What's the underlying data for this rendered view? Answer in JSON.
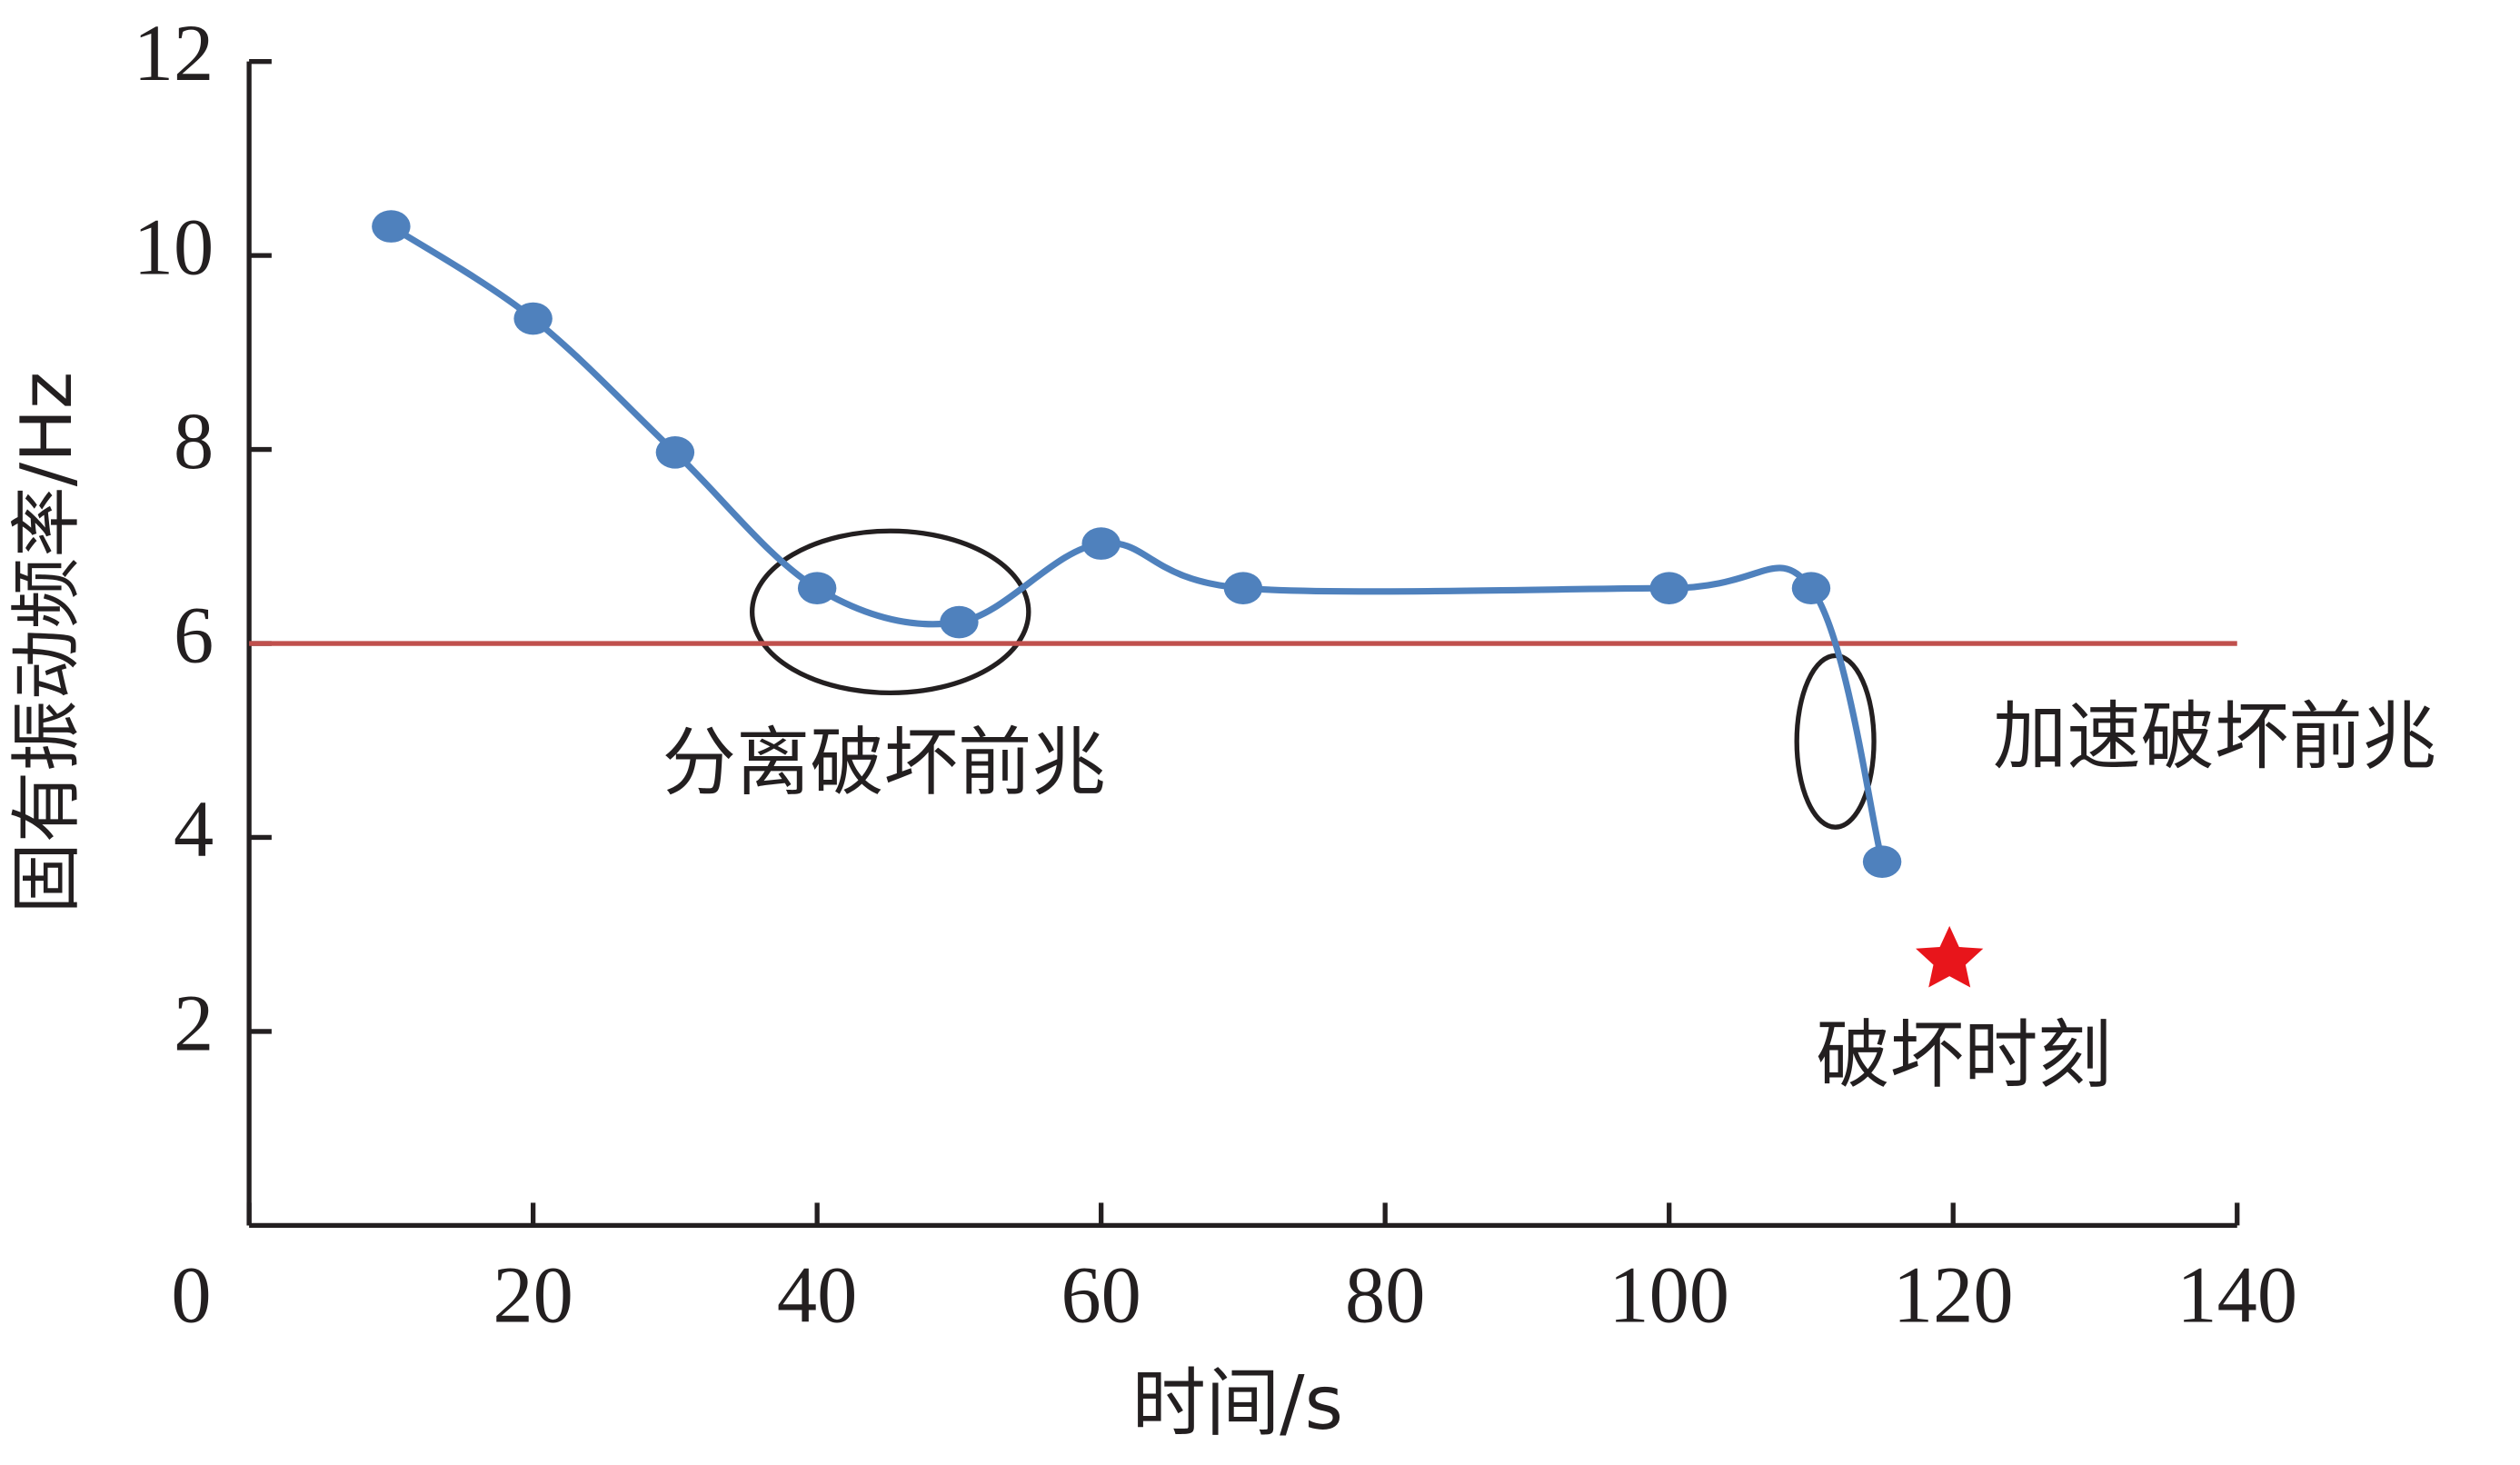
{
  "chart_data": {
    "type": "line",
    "xlabel": "时间/s",
    "ylabel": "固有振动频率/Hz",
    "x": [
      10,
      20,
      30,
      40,
      50,
      60,
      70,
      100,
      110,
      115
    ],
    "series": [
      {
        "color": "#4f81bd",
        "values": [
          10.3,
          9.35,
          7.97,
          6.57,
          6.22,
          7.03,
          6.57,
          6.57,
          6.57,
          3.75
        ]
      }
    ],
    "threshold": 6,
    "threshold_color": "#c0504d",
    "xlim": [
      0,
      140
    ],
    "xticks": [
      0,
      20,
      40,
      60,
      80,
      100,
      120,
      140
    ],
    "ylim": [
      0,
      12
    ],
    "yticks": [
      2,
      4,
      6,
      8,
      10,
      12
    ],
    "annotations": [
      "分离破坏前兆",
      "加速破坏前兆",
      "破坏时刻"
    ]
  }
}
